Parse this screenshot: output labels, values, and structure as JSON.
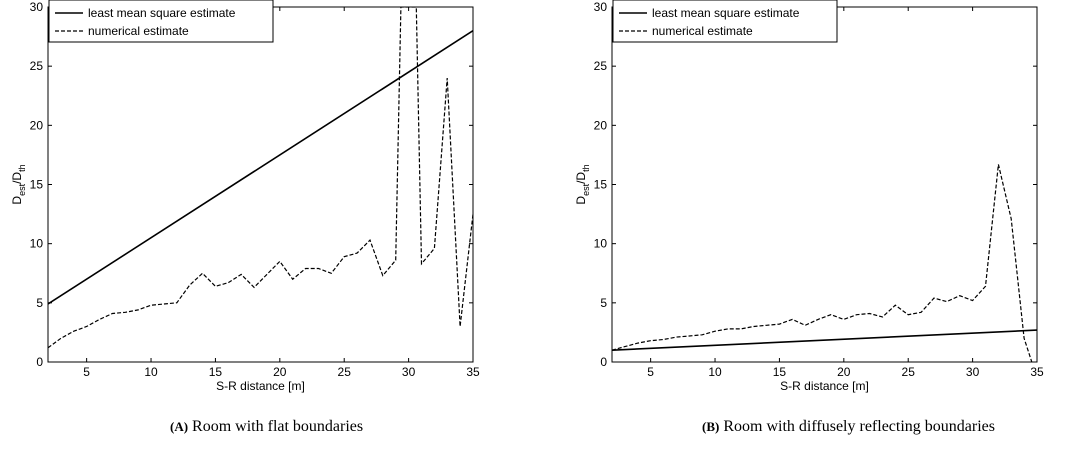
{
  "chart_data": [
    {
      "type": "line",
      "caption_tag": "(A)",
      "caption_text": "Room with flat boundaries",
      "xlabel": "S-R distance [m]",
      "ylabel_main": "D",
      "ylabel_sub1": "est",
      "ylabel_mid": "/D",
      "ylabel_sub2": "th",
      "xlim": [
        2,
        35
      ],
      "ylim": [
        0,
        30
      ],
      "xticks": [
        5,
        10,
        15,
        20,
        25,
        30,
        35
      ],
      "yticks": [
        0,
        5,
        10,
        15,
        20,
        25,
        30
      ],
      "legend_position": "top-left",
      "series": [
        {
          "name": "least mean square estimate",
          "style": "solid",
          "x": [
            2,
            35
          ],
          "y": [
            4.9,
            28.0
          ]
        },
        {
          "name": "numerical estimate",
          "style": "dashed",
          "x": [
            2,
            3,
            4,
            5,
            6,
            7,
            8,
            9,
            10,
            11,
            12,
            13,
            14,
            15,
            16,
            17,
            18,
            19,
            20,
            21,
            22,
            23,
            24,
            25,
            26,
            27,
            28,
            29,
            29.4,
            30.6,
            31,
            32,
            33,
            34,
            35
          ],
          "y": [
            1.2,
            2.0,
            2.6,
            3.0,
            3.6,
            4.1,
            4.2,
            4.4,
            4.8,
            4.9,
            5.0,
            6.5,
            7.5,
            6.4,
            6.7,
            7.4,
            6.3,
            7.4,
            8.5,
            7.0,
            7.9,
            7.9,
            7.5,
            8.9,
            9.2,
            10.3,
            7.3,
            8.6,
            30,
            30,
            8.3,
            9.6,
            24.0,
            3.0,
            12.5
          ]
        }
      ]
    },
    {
      "type": "line",
      "caption_tag": "(B)",
      "caption_text": "Room with diffusely reflecting boundaries",
      "xlabel": "S-R distance [m]",
      "ylabel_main": "D",
      "ylabel_sub1": "est",
      "ylabel_mid": "/D",
      "ylabel_sub2": "th",
      "xlim": [
        2,
        35
      ],
      "ylim": [
        0,
        30
      ],
      "xticks": [
        5,
        10,
        15,
        20,
        25,
        30,
        35
      ],
      "yticks": [
        0,
        5,
        10,
        15,
        20,
        25,
        30
      ],
      "legend_position": "top-left",
      "series": [
        {
          "name": "least mean square estimate",
          "style": "solid",
          "x": [
            2,
            35
          ],
          "y": [
            1.0,
            2.7
          ]
        },
        {
          "name": "numerical estimate",
          "style": "dashed",
          "x": [
            2,
            3,
            4,
            5,
            6,
            7,
            8,
            9,
            10,
            11,
            12,
            13,
            14,
            15,
            16,
            17,
            18,
            19,
            20,
            21,
            22,
            23,
            24,
            25,
            26,
            27,
            28,
            29,
            30,
            31,
            32,
            33,
            34,
            34.6
          ],
          "y": [
            1.0,
            1.3,
            1.6,
            1.8,
            1.9,
            2.1,
            2.2,
            2.3,
            2.6,
            2.8,
            2.8,
            3.0,
            3.1,
            3.2,
            3.6,
            3.1,
            3.6,
            4.0,
            3.6,
            4.0,
            4.1,
            3.8,
            4.8,
            4.0,
            4.2,
            5.4,
            5.1,
            5.6,
            5.2,
            6.4,
            16.7,
            12.1,
            2.0,
            0
          ]
        }
      ]
    }
  ]
}
